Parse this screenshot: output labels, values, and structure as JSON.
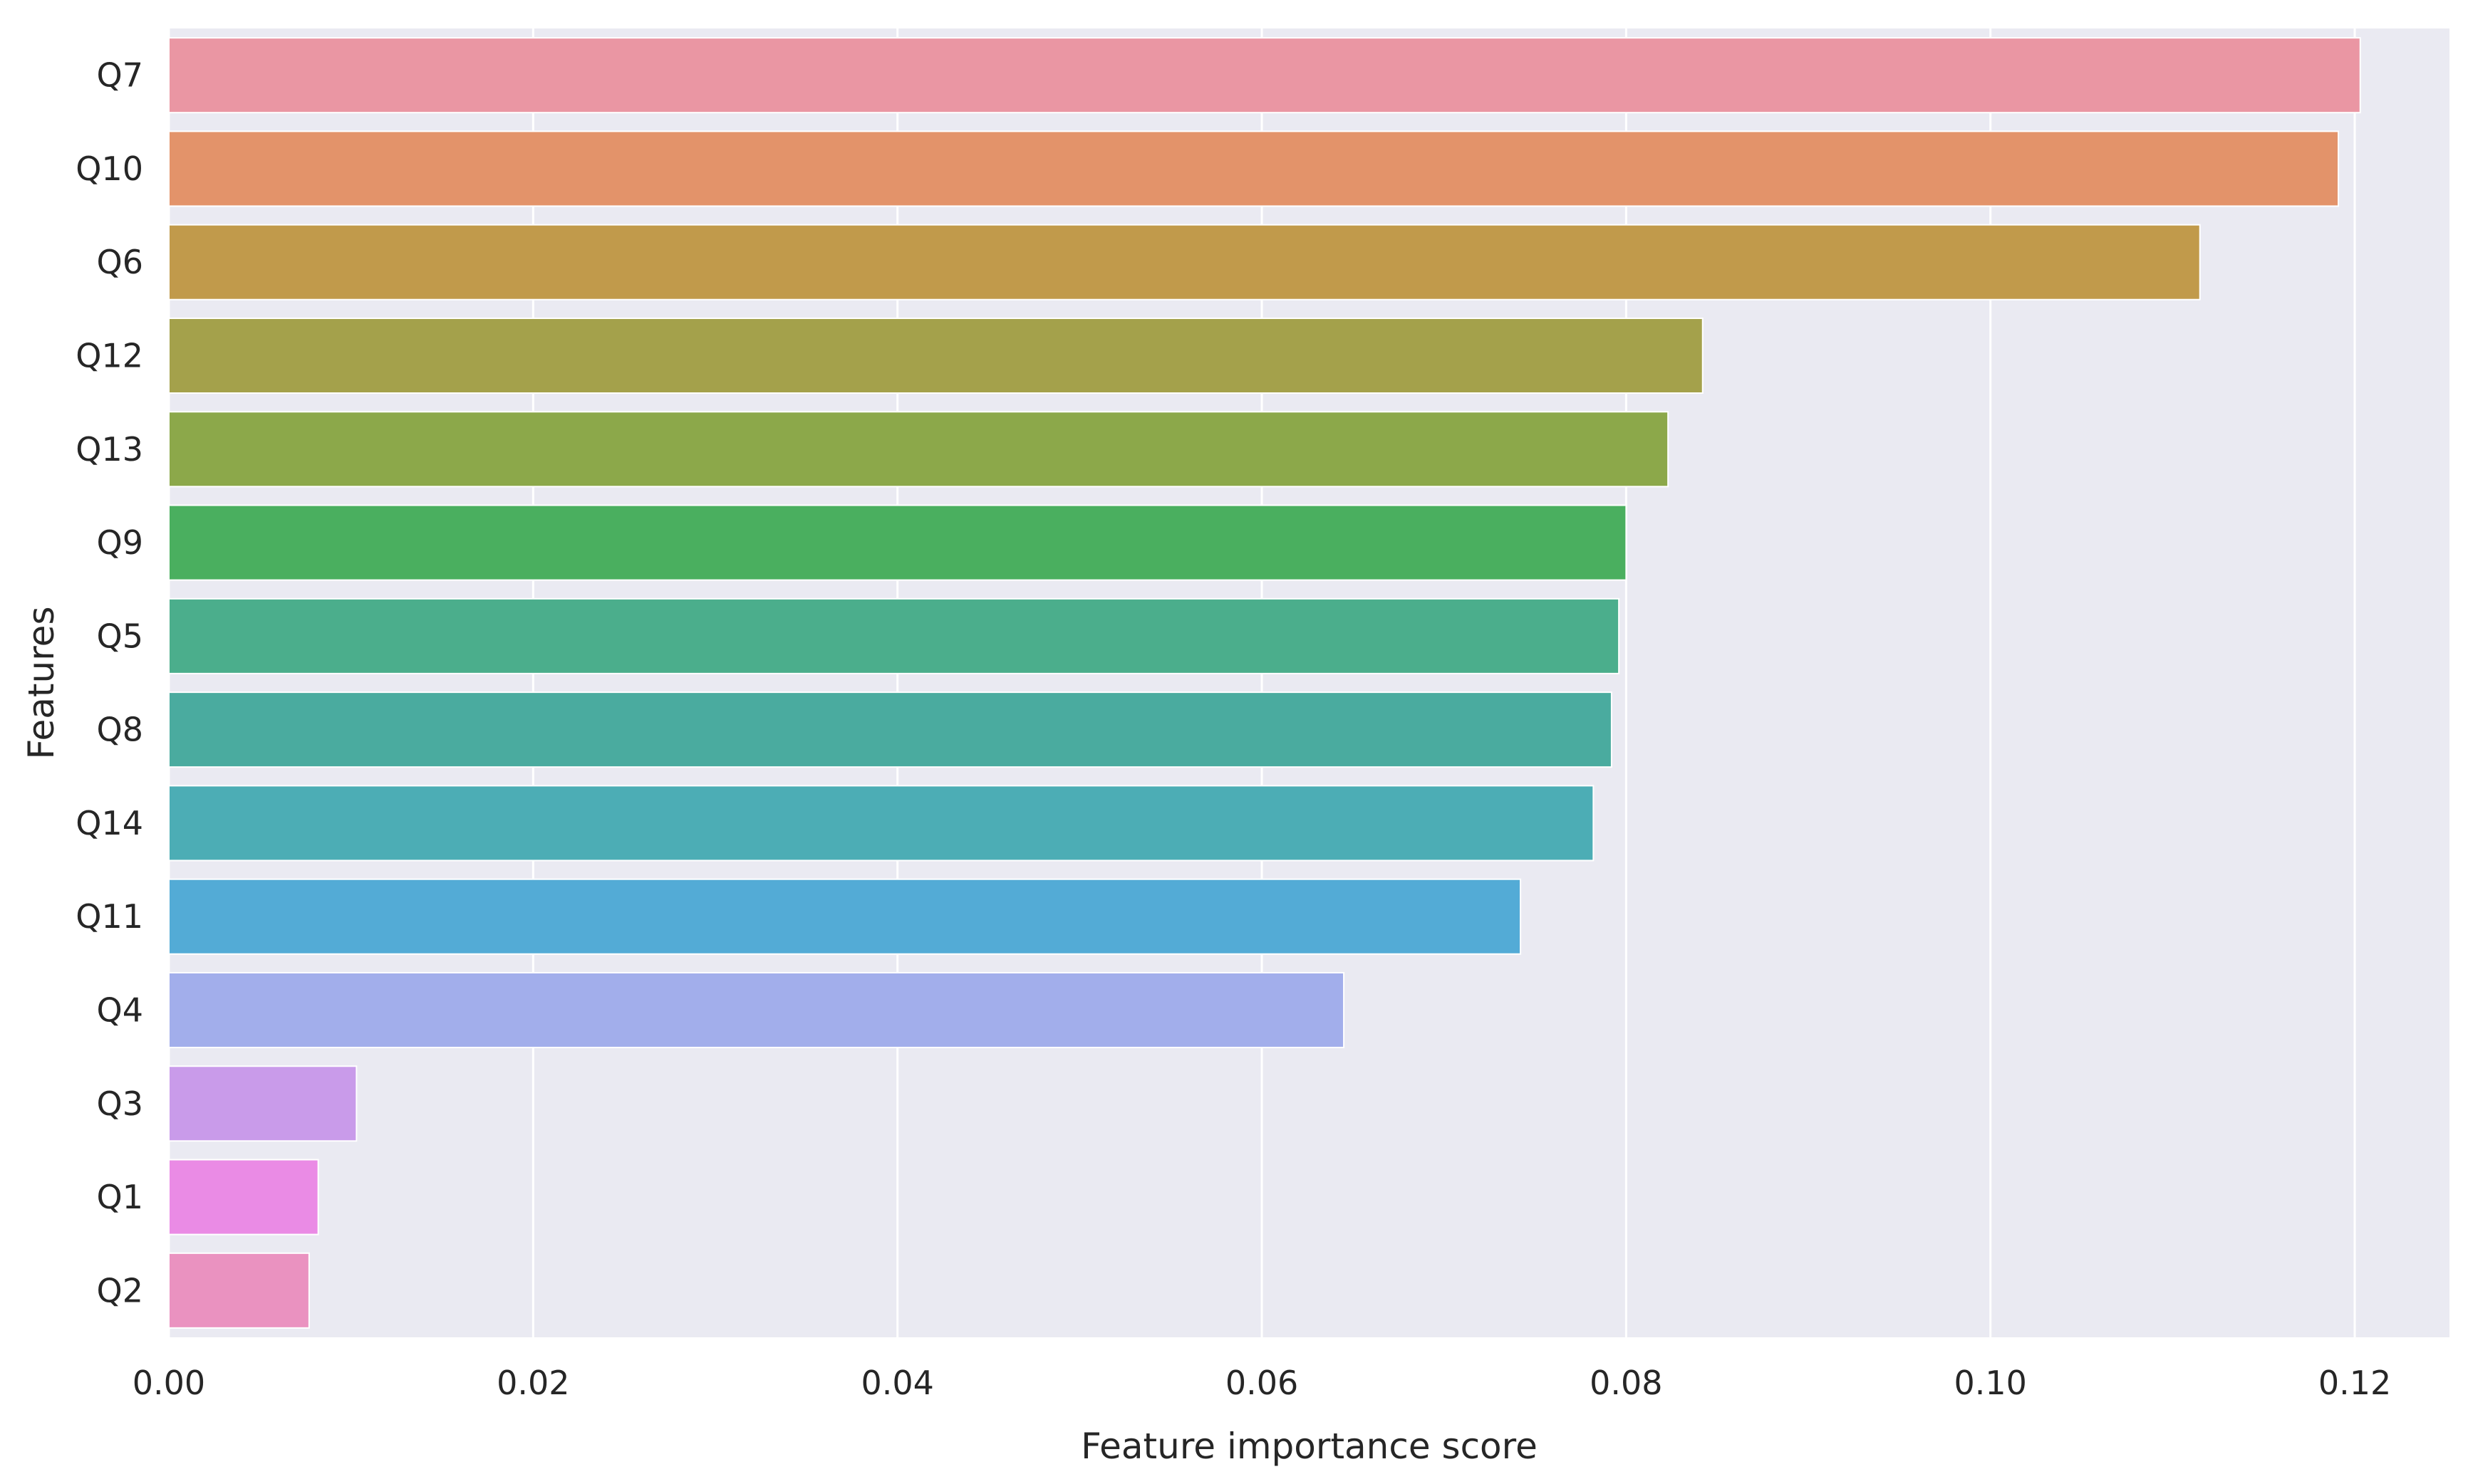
{
  "chart_data": {
    "type": "bar",
    "orientation": "horizontal",
    "categories": [
      "Q7",
      "Q10",
      "Q6",
      "Q12",
      "Q13",
      "Q9",
      "Q5",
      "Q8",
      "Q14",
      "Q11",
      "Q4",
      "Q3",
      "Q1",
      "Q2"
    ],
    "values": [
      0.1203,
      0.1191,
      0.1115,
      0.0842,
      0.0823,
      0.08,
      0.0796,
      0.0792,
      0.0782,
      0.0742,
      0.0645,
      0.0103,
      0.0082,
      0.0077
    ],
    "bar_colors": [
      "#ea96a3",
      "#e3936a",
      "#c19a4b",
      "#a4a14b",
      "#8ca84a",
      "#4aaf5f",
      "#4bae8c",
      "#4aab9f",
      "#4cadb5",
      "#53abd6",
      "#a2aeeb",
      "#c99bea",
      "#ea8be5",
      "#ea92c0"
    ],
    "xlabel": "Feature importance score",
    "ylabel": "Features",
    "xlim": [
      0.0,
      0.1252
    ],
    "xticks": [
      0.0,
      0.02,
      0.04,
      0.06,
      0.08,
      0.1,
      0.12
    ],
    "xtick_labels": [
      "0.00",
      "0.02",
      "0.04",
      "0.06",
      "0.08",
      "0.10",
      "0.12"
    ],
    "grid": true,
    "background_color": "#eaeaf2",
    "grid_color": "#ffffff"
  }
}
